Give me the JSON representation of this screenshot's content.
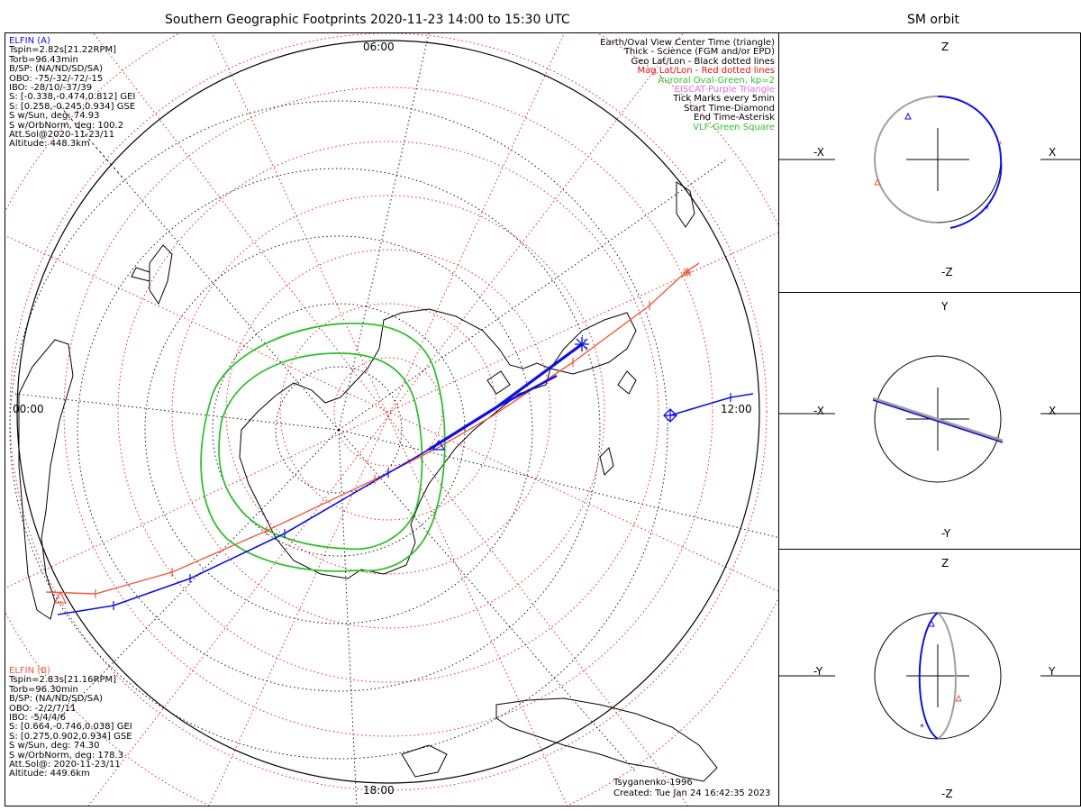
{
  "header": {
    "main_title": "Southern Geographic Footprints 2020-11-23 14:00 to 15:30 UTC",
    "side_title": "SM orbit"
  },
  "map": {
    "time_labels": {
      "top": "06:00",
      "left": "00:00",
      "right": "12:00",
      "bottom": "18:00"
    },
    "credit": "Tsyganenko-1996",
    "created": "Created: Tue Jan 24 16:42:35 2023"
  },
  "elfin_a": {
    "name": "ELFIN (A)",
    "color": "#1010e0",
    "lines": [
      "Tspin=2.82s[21.22RPM]",
      "Torb=96.43min",
      "B/SP: (NA/ND/SD/SA)",
      "OBO: -75/-32/-72/-15",
      "IBO: -28/10/-37/39",
      "S: [-0.338,-0.474,0.812] GEI",
      "S: [0.258,-0.245,0.934] GSE",
      "S w/Sun, deg: 74.93",
      "S w/OrbNorm, deg: 100.2",
      "Att.Sol@2020-11-23/11",
      "Altitude: 448.3km"
    ]
  },
  "elfin_b": {
    "name": "ELFIN (B)",
    "color": "#f05a3c",
    "lines": [
      "Tspin=2.83s[21.16RPM]",
      "Torb=96.30min",
      "B/SP: (NA/ND/SD/SA)",
      "OBO: -2/2/7/11",
      "IBO: -5/4/4/6",
      "S: [0.664,-0.746,0.038] GEI",
      "S: [0.275,0.902,0.934] GSE",
      "S w/Sun, deg: 74.30",
      "S w/OrbNorm, deg: 178.3",
      "Att.Sol@: 2020-11-23/11",
      "Altitude: 449.6km"
    ]
  },
  "legend": [
    {
      "text": "Earth/Oval View Center Time (triangle)",
      "color": "#000000"
    },
    {
      "text": "Thick - Science (FGM and/or EPD)",
      "color": "#000000"
    },
    {
      "text": "Geo Lat/Lon - Black dotted lines",
      "color": "#000000"
    },
    {
      "text": "Mag Lat/Lon - Red dotted lines",
      "color": "#e01010"
    },
    {
      "text": "Auroral Oval-Green, kp=2",
      "color": "#30c030"
    },
    {
      "text": "EISCAT-Purple Triangle",
      "color": "#e070e0"
    },
    {
      "text": "Tick Marks every 5min",
      "color": "#000000"
    },
    {
      "text": "Start Time-Diamond",
      "color": "#000000"
    },
    {
      "text": "End Time-Asterisk",
      "color": "#000000"
    },
    {
      "text": "VLF-Green Square",
      "color": "#30c030"
    }
  ],
  "orbit_panels": [
    {
      "top": "Z",
      "bottom": "-Z",
      "left": "-X",
      "right": "X"
    },
    {
      "top": "Y",
      "bottom": "-Y",
      "left": "-X",
      "right": "X"
    },
    {
      "top": "Z",
      "bottom": "-Z",
      "left": "-Y",
      "right": "Y"
    }
  ],
  "colors": {
    "elfin_a": "#1010e0",
    "elfin_b": "#f05a3c",
    "geo_grid": "#000000",
    "mag_grid": "#e01010",
    "auroral_oval": "#30c030",
    "orbit_gray": "#a0a0a0"
  }
}
